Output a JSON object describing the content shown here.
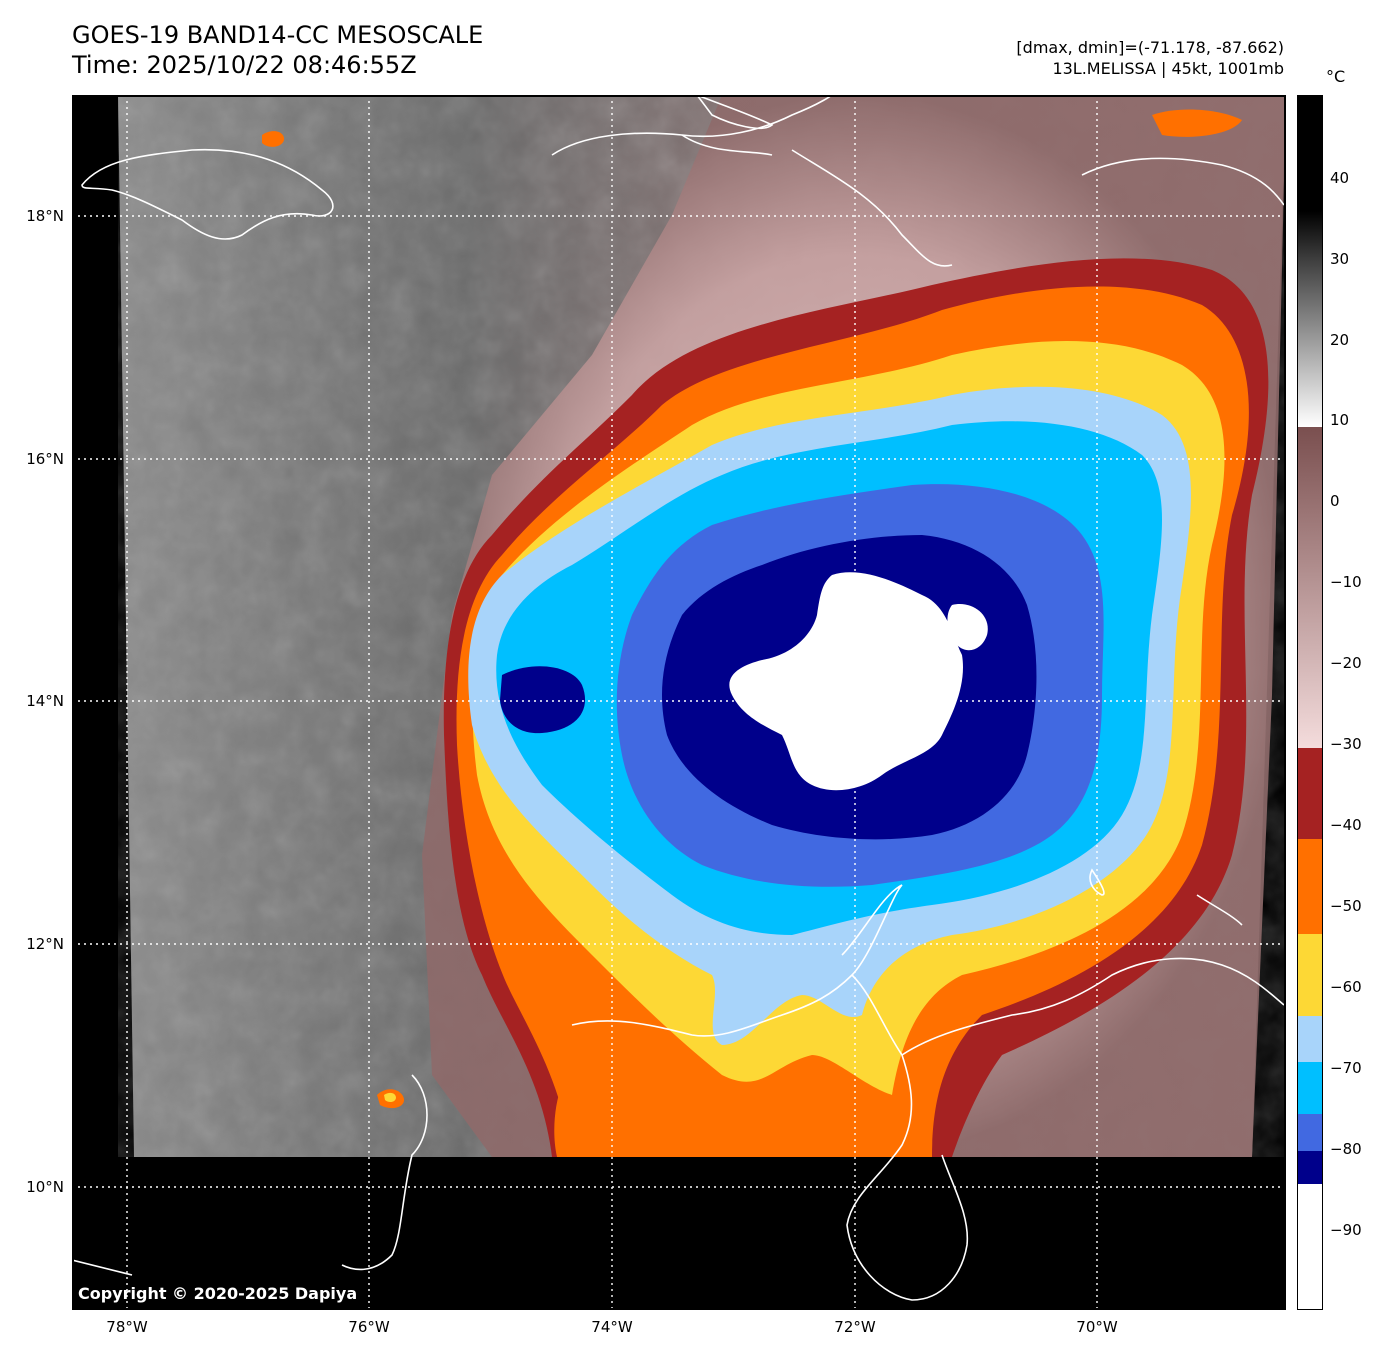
{
  "header": {
    "title_line1": "GOES-19 BAND14-CC MESOSCALE",
    "title_line2": "Time: 2025/10/22 08:46:55Z",
    "data_range": "[dmax, dmin]=(-71.178, -87.662)",
    "storm_info": "13L.MELISSA | 45kt, 1001mb"
  },
  "colorbar": {
    "unit": "°C",
    "labels": [
      "40",
      "30",
      "20",
      "10",
      "0",
      "−10",
      "−20",
      "−30",
      "−40",
      "−50",
      "−60",
      "−70",
      "−80",
      "−90"
    ],
    "colors": {
      "black": "#000000",
      "white": "#ffffff",
      "pink": "#f4dcdc",
      "maroon_dark": "#7a4f4f",
      "brick": "#a52222",
      "orange": "#ff7000",
      "yellow": "#fdd835",
      "light_blue": "#a8d4fa",
      "sky_blue": "#00bfff",
      "royal_blue": "#4169e1",
      "navy": "#00008b"
    }
  },
  "axes": {
    "lat_labels": [
      "18°N",
      "16°N",
      "14°N",
      "12°N",
      "10°N"
    ],
    "lon_labels": [
      "78°W",
      "76°W",
      "74°W",
      "72°W",
      "70°W"
    ]
  },
  "map": {
    "name": "Hurricane 13L MELISSA infrared brightness temperature",
    "copyright": "Copyright © 2020-2025 Dapiya"
  }
}
